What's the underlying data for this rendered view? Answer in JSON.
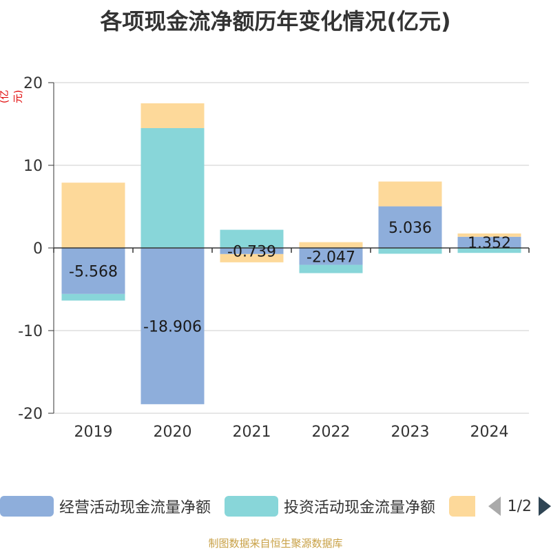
{
  "title": "各项现金流净额历年变化情况(亿元)",
  "unit_label": "(亿元)",
  "source": "制图数据来自恒生聚源数据库",
  "pager": {
    "text": "1/2"
  },
  "colors": {
    "operating": "#8eaedb",
    "investing": "#88d6d9",
    "financing": "#fdd99a",
    "axis": "#333333",
    "grid": "#cccccc"
  },
  "chart_data": {
    "type": "bar",
    "stacked": true,
    "title": "各项现金流净额历年变化情况(亿元)",
    "ylabel": "(亿元)",
    "ylim": [
      -20,
      20
    ],
    "yticks": [
      20,
      10,
      0,
      -10,
      -20
    ],
    "categories": [
      "2019",
      "2020",
      "2021",
      "2022",
      "2023",
      "2024"
    ],
    "series": [
      {
        "name": "经营活动现金流量净额",
        "color_key": "operating",
        "values": [
          -5.568,
          -18.906,
          -0.739,
          -2.047,
          5.036,
          1.352
        ],
        "labeled": true
      },
      {
        "name": "投资活动现金流量净额",
        "color_key": "investing",
        "values": [
          -0.8,
          14.5,
          2.2,
          -1.0,
          -0.7,
          -0.6
        ],
        "labeled": false
      },
      {
        "name": "",
        "color_key": "financing",
        "values": [
          7.9,
          3.0,
          -1.0,
          0.7,
          3.0,
          0.4
        ],
        "labeled": false
      }
    ],
    "data_labels": [
      "-5.568",
      "-18.906",
      "-0.739",
      "-2.047",
      "5.036",
      "1.352"
    ],
    "legend": [
      "经营活动现金流量净额",
      "投资活动现金流量净额",
      ""
    ]
  }
}
